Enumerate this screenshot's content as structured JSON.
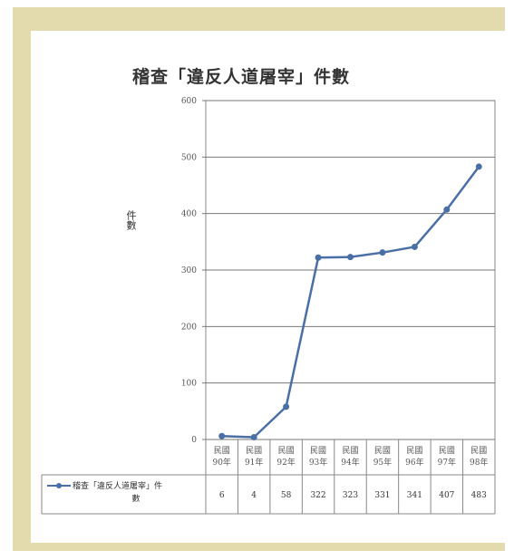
{
  "chart_data": {
    "type": "line",
    "title": "稽查「違反人道屠宰」件數",
    "ylabel": "件數",
    "xlabel": "",
    "ylim": [
      0,
      600
    ],
    "yticks": [
      0,
      100,
      200,
      300,
      400,
      500,
      600
    ],
    "categories": [
      [
        "民國",
        "90年"
      ],
      [
        "民國",
        "91年"
      ],
      [
        "民國",
        "92年"
      ],
      [
        "民國",
        "93年"
      ],
      [
        "民國",
        "94年"
      ],
      [
        "民國",
        "95年"
      ],
      [
        "民國",
        "96年"
      ],
      [
        "民國",
        "97年"
      ],
      [
        "民國",
        "98年"
      ]
    ],
    "series": [
      {
        "name_lines": [
          "稽查「違反人道屠宰」件",
          "數"
        ],
        "values": [
          6,
          4,
          58,
          322,
          323,
          331,
          341,
          407,
          483
        ],
        "color": "#4a6fa5"
      }
    ],
    "grid": true,
    "legend": "data-table"
  }
}
